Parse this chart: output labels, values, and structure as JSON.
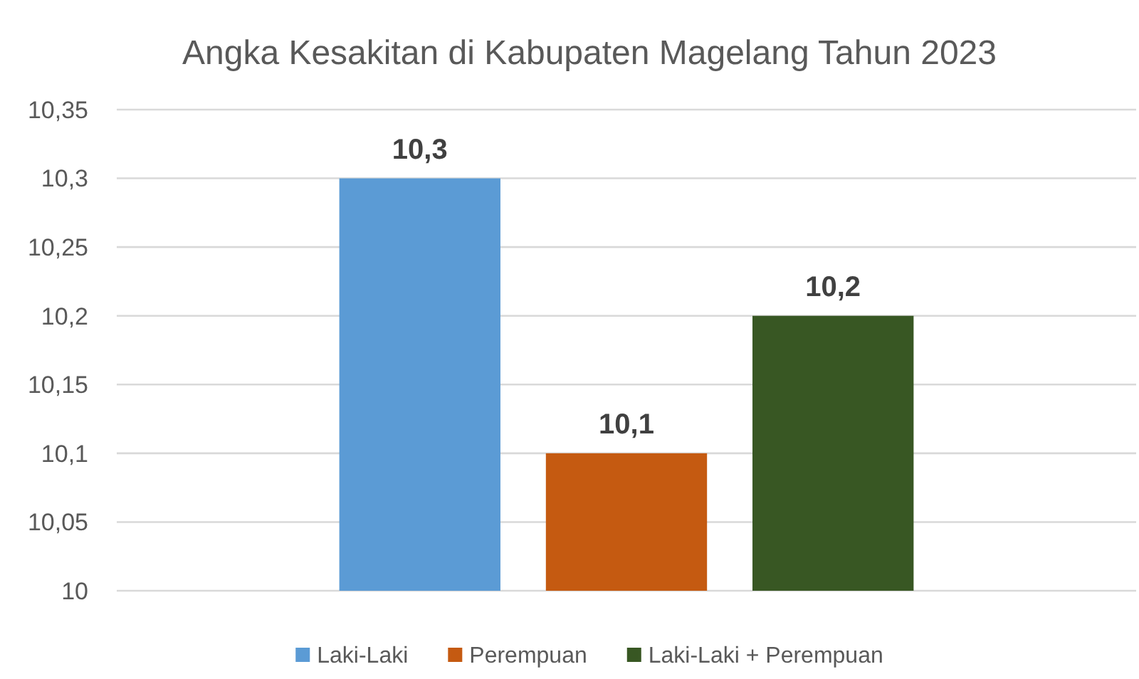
{
  "chart_data": {
    "type": "bar",
    "title": "Angka Kesakitan di Kabupaten Magelang Tahun 2023",
    "categories": [
      null
    ],
    "series": [
      {
        "name": "Laki-Laki",
        "color": "#5b9bd5",
        "values": [
          10.3
        ],
        "value_labels": [
          "10,3"
        ]
      },
      {
        "name": "Perempuan",
        "color": "#c55a11",
        "values": [
          10.1
        ],
        "value_labels": [
          "10,1"
        ]
      },
      {
        "name": "Laki-Laki + Perempuan",
        "color": "#385723",
        "values": [
          10.2
        ],
        "value_labels": [
          "10,2"
        ]
      }
    ],
    "ylim": [
      10,
      10.35
    ],
    "yticks": [
      10,
      {
        "value": 10.05,
        "label": "10,05"
      },
      {
        "value": 10.1,
        "label": "10,1"
      },
      {
        "value": 10.15,
        "label": "10,15"
      },
      {
        "value": 10.2,
        "label": "10,2"
      },
      {
        "value": 10.25,
        "label": "10,25"
      },
      {
        "value": 10.3,
        "label": "10,3"
      },
      {
        "value": 10.35,
        "label": "10,35"
      }
    ],
    "grid": "y",
    "legend": "bottom"
  }
}
